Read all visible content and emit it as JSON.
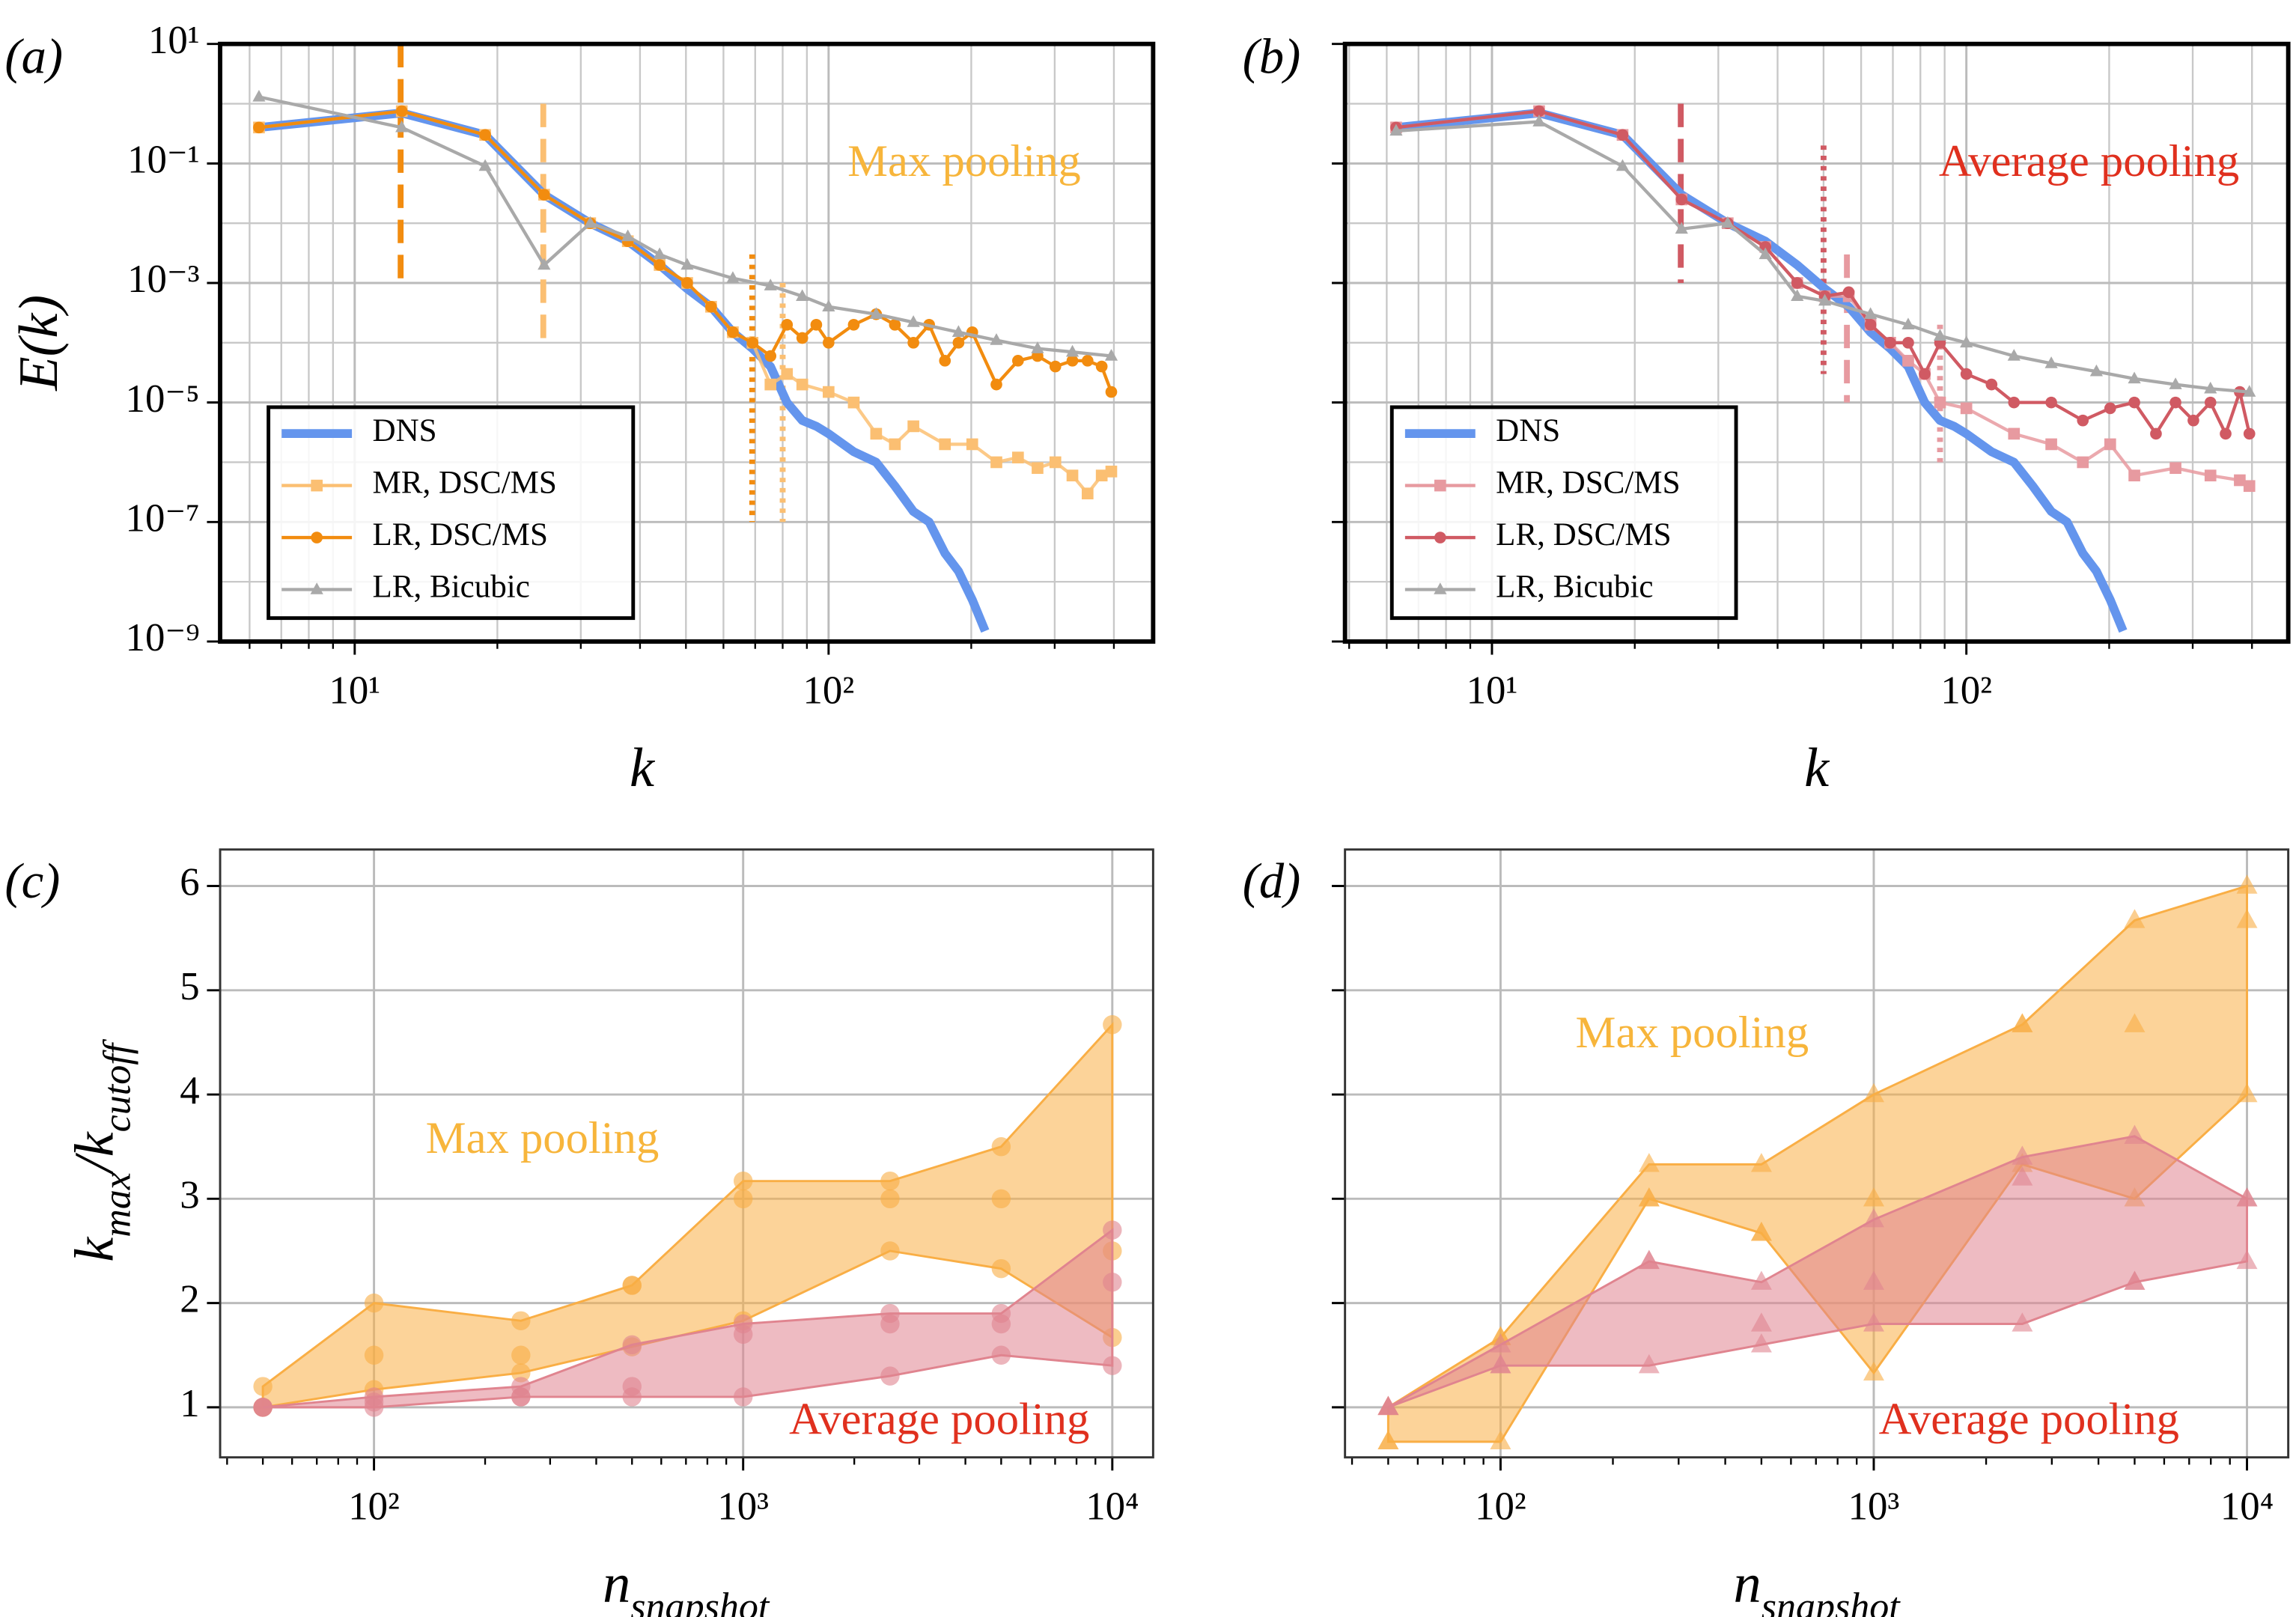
{
  "chart_data": [
    {
      "type": "line",
      "panel_label": "(a)",
      "xlabel": [
        {
          "text": "k"
        }
      ],
      "ylabel": [
        {
          "text": "E(k)"
        }
      ],
      "xscale": "log",
      "yscale": "log",
      "xlim": [
        5.2,
        484
      ],
      "ylim": [
        1e-09,
        10
      ],
      "xticks": [
        {
          "value": 10,
          "label": "10¹"
        },
        {
          "value": 100,
          "label": "10²"
        }
      ],
      "yticks": [
        {
          "value": 10,
          "label": "10¹"
        },
        {
          "value": 0.1,
          "label": "10⁻¹"
        },
        {
          "value": 0.001,
          "label": "10⁻³"
        },
        {
          "value": 1e-05,
          "label": "10⁻⁵"
        },
        {
          "value": 1e-07,
          "label": "10⁻⁷"
        },
        {
          "value": 1e-09,
          "label": "10⁻⁹"
        }
      ],
      "grid": true,
      "minor_grid": true,
      "legend": "lower left",
      "annotation": {
        "text": "Max pooling",
        "color": "#f7b53b"
      },
      "series": [
        {
          "name": "DNS",
          "color": "#6495ed",
          "marker": "none",
          "x": [
            6.28,
            12.57,
            18.85,
            25.1,
            31.4,
            37.7,
            44,
            50.3,
            56.5,
            62.8,
            69.1,
            75.4,
            81.7,
            88,
            94.2,
            100,
            113,
            126,
            138,
            151,
            163,
            176,
            188,
            201,
            214
          ],
          "values": [
            0.4,
            0.7,
            0.3,
            0.03,
            0.01,
            0.005,
            0.002,
            0.0008,
            0.0004,
            0.00015,
            8e-05,
            4e-05,
            1e-05,
            5e-06,
            4e-06,
            3e-06,
            1.5e-06,
            1e-06,
            4e-07,
            1.5e-07,
            1e-07,
            3e-08,
            1.5e-08,
            5e-09,
            1.5e-09
          ]
        },
        {
          "name": "MR, DSC/MS",
          "color": "#fbbf72",
          "marker": "square",
          "x": [
            6.28,
            12.57,
            18.85,
            25.1,
            31.4,
            37.7,
            44,
            50.3,
            56.5,
            62.8,
            69.1,
            75.4,
            81.7,
            88,
            100,
            113,
            126,
            138,
            151,
            176,
            201,
            226,
            251,
            276,
            301,
            327,
            352,
            377,
            395
          ],
          "values": [
            0.4,
            0.75,
            0.3,
            0.03,
            0.01,
            0.005,
            0.002,
            0.001,
            0.0004,
            0.00015,
            0.0001,
            2e-05,
            3e-05,
            2e-05,
            1.5e-05,
            1e-05,
            3e-06,
            2e-06,
            4e-06,
            2e-06,
            2e-06,
            1e-06,
            1.2e-06,
            8e-07,
            1e-06,
            6e-07,
            3e-07,
            6e-07,
            7e-07
          ]
        },
        {
          "name": "LR, DSC/MS",
          "color": "#f28c0f",
          "marker": "circle",
          "x": [
            6.28,
            12.57,
            18.85,
            25.1,
            31.4,
            37.7,
            44,
            50.3,
            56.5,
            62.8,
            69.1,
            75.4,
            81.7,
            88,
            94.2,
            100,
            113,
            126,
            138,
            151,
            163,
            176,
            188,
            201,
            226,
            251,
            276,
            301,
            327,
            352,
            377,
            395
          ],
          "values": [
            0.4,
            0.75,
            0.3,
            0.03,
            0.01,
            0.005,
            0.002,
            0.001,
            0.0004,
            0.00015,
            0.0001,
            6e-05,
            0.0002,
            0.00012,
            0.0002,
            0.0001,
            0.0002,
            0.0003,
            0.0002,
            0.0001,
            0.0002,
            5e-05,
            0.0001,
            0.00015,
            2e-05,
            5e-05,
            6e-05,
            4e-05,
            5e-05,
            5e-05,
            4e-05,
            1.5e-05
          ]
        },
        {
          "name": "LR, Bicubic",
          "color": "#a9a9a9",
          "marker": "triangle",
          "x": [
            6.28,
            12.57,
            18.85,
            25.1,
            31.4,
            37.7,
            44,
            50.3,
            62.8,
            75.4,
            88,
            100,
            126,
            151,
            188,
            226,
            276,
            327,
            395
          ],
          "values": [
            1.3,
            0.4,
            0.09,
            0.002,
            0.01,
            0.006,
            0.003,
            0.002,
            0.0012,
            0.0009,
            0.0006,
            0.0004,
            0.0003,
            0.00022,
            0.00015,
            0.00011,
            8e-05,
            7e-05,
            6e-05
          ]
        }
      ],
      "cutoffs": [
        {
          "x": 12.5,
          "y": [
            10,
            0.001
          ],
          "color": "#f28c0f",
          "style": "dashed"
        },
        {
          "x": 25,
          "y": [
            1,
            0.0001
          ],
          "color": "#fbbf72",
          "style": "dashed"
        },
        {
          "x": 69,
          "y": [
            0.003,
            1e-07
          ],
          "color": "#f28c0f",
          "style": "dotted"
        },
        {
          "x": 80,
          "y": [
            0.001,
            1e-07
          ],
          "color": "#fbbf72",
          "style": "dotted"
        }
      ]
    },
    {
      "type": "line",
      "panel_label": "(b)",
      "xlabel": [
        {
          "text": "k"
        }
      ],
      "xscale": "log",
      "yscale": "log",
      "xlim": [
        4.9,
        477
      ],
      "ylim": [
        1e-09,
        10
      ],
      "xticks": [
        {
          "value": 10,
          "label": "10¹"
        },
        {
          "value": 100,
          "label": "10²"
        }
      ],
      "yticks": [
        10,
        0.1,
        0.001,
        1e-05,
        1e-07,
        1e-09
      ],
      "ytick_labels": false,
      "grid": true,
      "minor_grid": true,
      "legend": "lower left",
      "annotation": {
        "text": "Average pooling",
        "color": "#e0301e"
      },
      "series": [
        {
          "name": "DNS",
          "color": "#6495ed",
          "marker": "none",
          "x": [
            6.28,
            12.57,
            18.85,
            25.1,
            31.4,
            37.7,
            44,
            50.3,
            56.5,
            62.8,
            69.1,
            75.4,
            81.7,
            88,
            94.2,
            100,
            113,
            126,
            138,
            151,
            163,
            176,
            188,
            201,
            214
          ],
          "values": [
            0.4,
            0.7,
            0.3,
            0.03,
            0.01,
            0.005,
            0.002,
            0.0008,
            0.0004,
            0.00015,
            8e-05,
            4e-05,
            1e-05,
            5e-06,
            4e-06,
            3e-06,
            1.5e-06,
            1e-06,
            4e-07,
            1.5e-07,
            1e-07,
            3e-08,
            1.5e-08,
            5e-09,
            1.5e-09
          ]
        },
        {
          "name": "MR, DSC/MS",
          "color": "#e79aa0",
          "marker": "square",
          "x": [
            6.28,
            12.57,
            18.85,
            25.1,
            31.4,
            37.7,
            44,
            50.3,
            56.5,
            62.8,
            69.1,
            75.4,
            81.7,
            88,
            100,
            126,
            151,
            176,
            201,
            226,
            276,
            327,
            377,
            395
          ],
          "values": [
            0.4,
            0.75,
            0.3,
            0.025,
            0.01,
            0.004,
            0.001,
            0.0006,
            0.0006,
            0.0002,
            0.0001,
            5e-05,
            3e-05,
            1e-05,
            8e-06,
            3e-06,
            2e-06,
            1e-06,
            2e-06,
            6e-07,
            8e-07,
            6e-07,
            5e-07,
            4e-07
          ]
        },
        {
          "name": "LR, DSC/MS",
          "color": "#d05a63",
          "marker": "circle",
          "x": [
            6.28,
            12.57,
            18.85,
            25.1,
            31.4,
            37.7,
            44,
            50.3,
            56.5,
            62.8,
            69.1,
            75.4,
            81.7,
            88,
            100,
            113,
            126,
            151,
            176,
            201,
            226,
            251,
            276,
            301,
            327,
            352,
            377,
            395
          ],
          "values": [
            0.4,
            0.75,
            0.3,
            0.025,
            0.01,
            0.004,
            0.001,
            0.0006,
            0.0007,
            0.0002,
            0.0001,
            0.0001,
            3e-05,
            0.0001,
            3e-05,
            2e-05,
            1e-05,
            1e-05,
            5e-06,
            8e-06,
            1e-05,
            3e-06,
            1e-05,
            5e-06,
            1e-05,
            3e-06,
            1.5e-05,
            3e-06
          ]
        },
        {
          "name": "LR, Bicubic",
          "color": "#a9a9a9",
          "marker": "triangle",
          "x": [
            6.28,
            12.57,
            18.85,
            25.1,
            31.4,
            37.7,
            44,
            50.3,
            62.8,
            75.4,
            88,
            100,
            126,
            151,
            188,
            226,
            276,
            327,
            395
          ],
          "values": [
            0.35,
            0.5,
            0.09,
            0.008,
            0.01,
            0.003,
            0.0006,
            0.0005,
            0.0003,
            0.0002,
            0.00013,
            0.0001,
            6e-05,
            4.5e-05,
            3.3e-05,
            2.5e-05,
            2e-05,
            1.7e-05,
            1.5e-05
          ]
        }
      ],
      "cutoffs": [
        {
          "x": 25,
          "y": [
            1,
            0.001
          ],
          "color": "#d05a63",
          "style": "dashed"
        },
        {
          "x": 50,
          "y": [
            0.2,
            3e-05
          ],
          "color": "#d05a63",
          "style": "dotted"
        },
        {
          "x": 56,
          "y": [
            0.003,
            1e-05
          ],
          "color": "#e79aa0",
          "style": "dashed"
        },
        {
          "x": 88,
          "y": [
            0.0002,
            1e-06
          ],
          "color": "#e79aa0",
          "style": "dotted"
        }
      ]
    },
    {
      "type": "area",
      "panel_label": "(c)",
      "xlabel": [
        {
          "text": "n"
        },
        {
          "text": "snapshot",
          "sub": true
        }
      ],
      "ylabel": [
        {
          "text": "k"
        },
        {
          "text": "max",
          "sub": true
        },
        {
          "text": "/k"
        },
        {
          "text": "cutoff",
          "sub": true
        }
      ],
      "xscale": "log",
      "yscale": "linear",
      "xlim": [
        38.3,
        12900
      ],
      "ylim": [
        0.52,
        6.35
      ],
      "xticks": [
        {
          "value": 100,
          "label": "10²"
        },
        {
          "value": 1000,
          "label": "10³"
        },
        {
          "value": 10000,
          "label": "10⁴"
        }
      ],
      "yticks": [
        1,
        2,
        3,
        4,
        5,
        6
      ],
      "grid": true,
      "marker": "circle",
      "x": [
        50,
        100,
        250,
        500,
        1000,
        2500,
        5000,
        10000
      ],
      "series": [
        {
          "name": "Max pooling",
          "color": "#f9ae45",
          "text_color": "#f7b53b",
          "runs": [
            [
              1.2,
              2.0,
              1.83,
              2.17,
              3.17,
              3.17,
              3.5,
              4.67
            ],
            [
              1.0,
              1.5,
              1.5,
              2.17,
              3.0,
              3.0,
              3.0,
              2.5
            ],
            [
              1.0,
              1.17,
              1.33,
              1.58,
              1.83,
              2.5,
              2.33,
              1.67
            ]
          ]
        },
        {
          "name": "Average pooling",
          "color": "#e0848f",
          "text_color": "#e0301e",
          "runs": [
            [
              1.0,
              1.1,
              1.2,
              1.6,
              1.8,
              1.9,
              1.9,
              2.7
            ],
            [
              1.0,
              1.05,
              1.1,
              1.2,
              1.7,
              1.8,
              1.8,
              2.2
            ],
            [
              1.0,
              1.0,
              1.1,
              1.1,
              1.1,
              1.3,
              1.5,
              1.4
            ]
          ]
        }
      ]
    },
    {
      "type": "area",
      "panel_label": "(d)",
      "xlabel": [
        {
          "text": "n"
        },
        {
          "text": "snapshot",
          "sub": true
        }
      ],
      "xscale": "log",
      "yscale": "linear",
      "xlim": [
        38.3,
        12900
      ],
      "ylim": [
        0.52,
        6.35
      ],
      "xticks": [
        {
          "value": 100,
          "label": "10²"
        },
        {
          "value": 1000,
          "label": "10³"
        },
        {
          "value": 10000,
          "label": "10⁴"
        }
      ],
      "yticks": [
        1,
        2,
        3,
        4,
        5,
        6
      ],
      "ytick_labels": false,
      "grid": true,
      "marker": "triangle",
      "x": [
        50,
        100,
        250,
        500,
        1000,
        2500,
        5000,
        10000
      ],
      "series": [
        {
          "name": "Max pooling",
          "color": "#f9ae45",
          "text_color": "#f7b53b",
          "runs": [
            [
              1.0,
              1.67,
              3.33,
              3.33,
              4.0,
              4.67,
              5.67,
              6.0
            ],
            [
              0.67,
              1.67,
              3.0,
              2.67,
              3.0,
              4.67,
              4.67,
              5.67
            ],
            [
              0.67,
              0.67,
              3.0,
              2.67,
              1.33,
              3.33,
              3.0,
              4.0
            ]
          ]
        },
        {
          "name": "Average pooling",
          "color": "#e0848f",
          "text_color": "#e0301e",
          "runs": [
            [
              1.0,
              1.6,
              2.4,
              2.2,
              2.8,
              3.4,
              3.6,
              3.0
            ],
            [
              1.0,
              1.4,
              2.4,
              1.8,
              2.2,
              3.2,
              2.2,
              3.0
            ],
            [
              1.0,
              1.4,
              1.4,
              1.6,
              1.8,
              1.8,
              2.2,
              2.4
            ]
          ]
        }
      ]
    }
  ]
}
